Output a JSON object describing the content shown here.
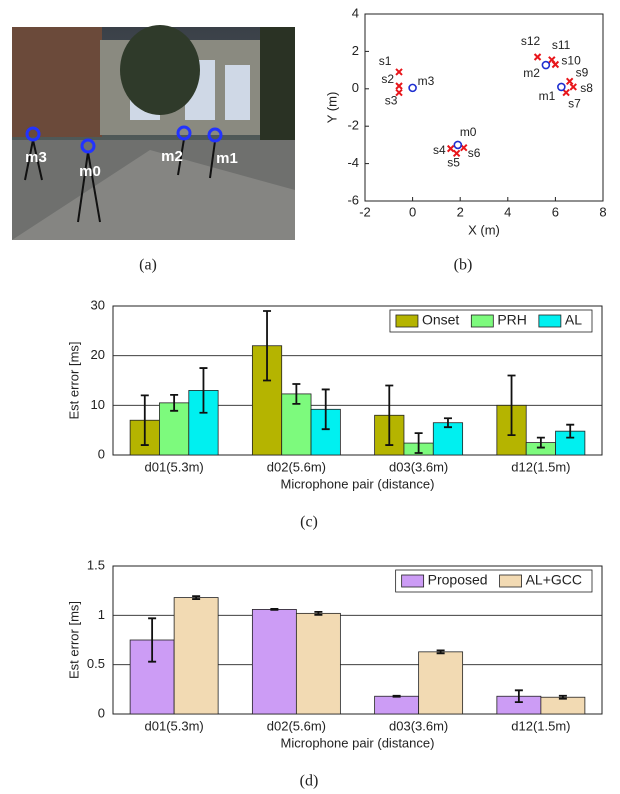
{
  "photo": {
    "labels": [
      "m3",
      "m0",
      "m2",
      "m1"
    ]
  },
  "captions": [
    "(a)",
    "(b)",
    "(c)",
    "(d)"
  ],
  "chart_data": [
    {
      "type": "scatter",
      "xlabel": "X (m)",
      "ylabel": "Y (m)",
      "xlim": [
        -2,
        8
      ],
      "ylim": [
        -6,
        4
      ],
      "xticks": [
        -2,
        0,
        2,
        4,
        6,
        8
      ],
      "yticks": [
        -6,
        -4,
        -2,
        0,
        2,
        4
      ],
      "series": [
        {
          "color": "#e8161b",
          "marker": "x",
          "labels": [
            "s1",
            "s2",
            "s3",
            "s4",
            "s5",
            "s6",
            "s7",
            "s8",
            "s9",
            "s10",
            "s11",
            "s12"
          ],
          "x": [
            -0.57,
            -0.57,
            -0.57,
            1.6,
            1.85,
            2.15,
            6.45,
            6.75,
            6.6,
            6.0,
            5.85,
            5.25
          ],
          "y": [
            0.9,
            0.15,
            -0.2,
            -3.2,
            -3.45,
            -3.15,
            -0.2,
            0.1,
            0.4,
            1.3,
            1.55,
            1.7
          ]
        },
        {
          "color": "#1f2fd0",
          "marker": "o",
          "labels": [
            "m0",
            "m1",
            "m2",
            "m3"
          ],
          "x": [
            1.9,
            6.25,
            5.6,
            0
          ],
          "y": [
            -3.0,
            0.1,
            1.27,
            0.05
          ]
        }
      ]
    },
    {
      "type": "bar",
      "xlabel": "Microphone pair (distance)",
      "ylabel": "Est error [ms]",
      "categories": [
        "d01(5.3m)",
        "d02(5.6m)",
        "d03(3.6m)",
        "d12(1.5m)"
      ],
      "ylim": [
        0,
        30
      ],
      "yticks": [
        0,
        10,
        20,
        30
      ],
      "grid": true,
      "legend": "top-right",
      "series": [
        {
          "name": "Onset",
          "color": "#b5b400",
          "values": [
            7,
            22,
            8,
            10
          ],
          "errors": [
            5,
            7,
            6,
            6
          ]
        },
        {
          "name": "PRH",
          "color": "#7dfa7d",
          "values": [
            10.5,
            12.3,
            2.4,
            2.5
          ],
          "errors": [
            1.6,
            2,
            2,
            1
          ]
        },
        {
          "name": "AL",
          "color": "#00f0f0",
          "values": [
            13,
            9.2,
            6.5,
            4.8
          ],
          "errors": [
            4.5,
            4,
            0.9,
            1.3
          ]
        }
      ]
    },
    {
      "type": "bar",
      "xlabel": "Microphone pair (distance)",
      "ylabel": "Est error [ms]",
      "categories": [
        "d01(5.3m)",
        "d02(5.6m)",
        "d03(3.6m)",
        "d12(1.5m)"
      ],
      "ylim": [
        0,
        1.5
      ],
      "yticks": [
        0,
        0.5,
        1,
        1.5
      ],
      "grid": true,
      "legend": "top-right",
      "series": [
        {
          "name": "Proposed",
          "color": "#cc9cf5",
          "values": [
            0.75,
            1.06,
            0.18,
            0.18
          ],
          "errors": [
            0.22,
            0.005,
            0.005,
            0.06
          ]
        },
        {
          "name": "AL+GCC",
          "color": "#f2dab3",
          "values": [
            1.18,
            1.02,
            0.63,
            0.17
          ],
          "errors": [
            0.015,
            0.015,
            0.015,
            0.015
          ]
        }
      ]
    }
  ]
}
